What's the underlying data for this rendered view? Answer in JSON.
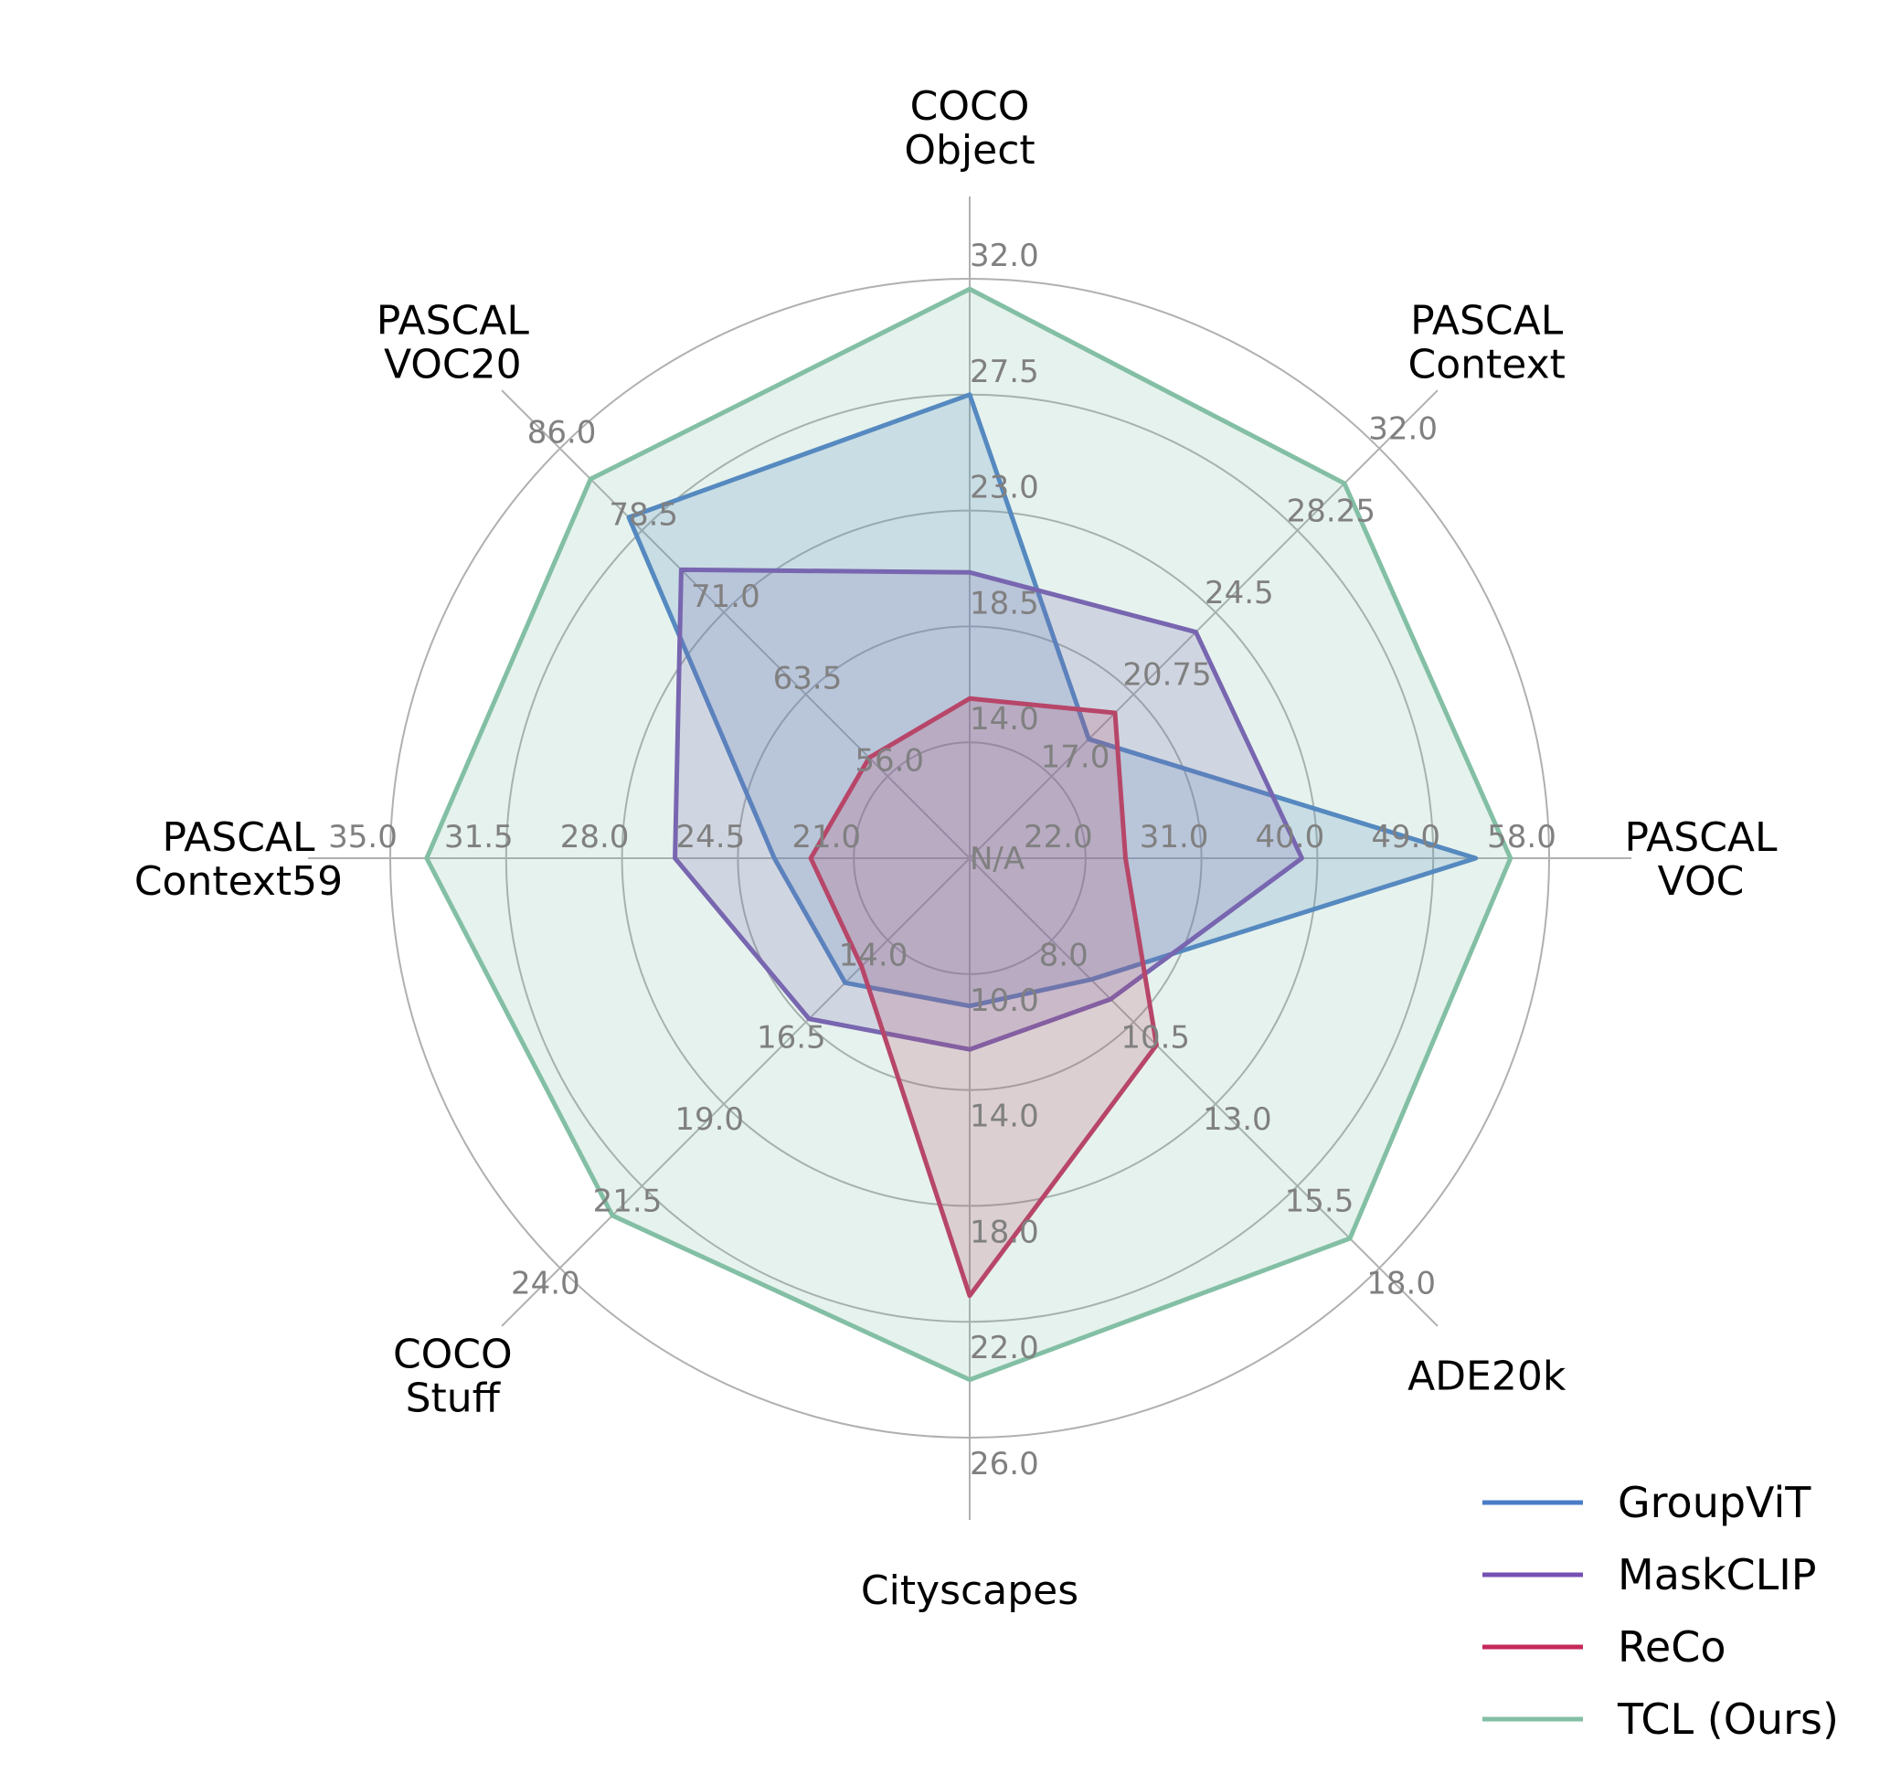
{
  "chart_data": {
    "type": "radar",
    "axes": [
      {
        "label": [
          "PASCAL",
          "VOC"
        ],
        "ticks": [
          "N/A",
          "22.0",
          "31.0",
          "40.0",
          "49.0",
          "58.0"
        ],
        "min": 13.0,
        "max": 58.0
      },
      {
        "label": [
          "PASCAL",
          "Context"
        ],
        "ticks": [
          "N/A",
          "17.0",
          "20.75",
          "24.5",
          "28.25",
          "32.0"
        ],
        "min": 13.25,
        "max": 32.0
      },
      {
        "label": [
          "COCO",
          "Object"
        ],
        "ticks": [
          "N/A",
          "14.0",
          "18.5",
          "23.0",
          "27.5",
          "32.0"
        ],
        "min": 9.5,
        "max": 32.0
      },
      {
        "label": [
          "PASCAL",
          "VOC20"
        ],
        "ticks": [
          "N/A",
          "56.0",
          "63.5",
          "71.0",
          "78.5",
          "86.0"
        ],
        "min": 48.5,
        "max": 86.0
      },
      {
        "label": [
          "PASCAL",
          "Context59"
        ],
        "ticks": [
          "N/A",
          "21.0",
          "24.5",
          "28.0",
          "31.5",
          "35.0"
        ],
        "min": 17.5,
        "max": 35.0
      },
      {
        "label": [
          "COCO",
          "Stuff"
        ],
        "ticks": [
          "N/A",
          "14.0",
          "16.5",
          "19.0",
          "21.5",
          "24.0"
        ],
        "min": 11.5,
        "max": 24.0
      },
      {
        "label": [
          "Cityscapes"
        ],
        "ticks": [
          "N/A",
          "10.0",
          "14.0",
          "18.0",
          "22.0",
          "26.0"
        ],
        "min": 6.0,
        "max": 26.0
      },
      {
        "label": [
          "ADE20k"
        ],
        "ticks": [
          "N/A",
          "8.0",
          "10.5",
          "13.0",
          "15.5",
          "18.0"
        ],
        "min": 5.5,
        "max": 18.0
      }
    ],
    "series": [
      {
        "name": "GroupViT",
        "color": "#4a7cc7",
        "values": [
          52.3,
          18.7,
          27.5,
          79.7,
          23.4,
          15.3,
          11.1,
          9.2
        ]
      },
      {
        "name": "MaskCLIP",
        "color": "#7650b3",
        "values": [
          38.8,
          23.6,
          20.6,
          74.9,
          26.4,
          16.4,
          12.6,
          9.8
        ]
      },
      {
        "name": "ReCo",
        "color": "#c5285a",
        "values": [
          25.1,
          19.9,
          15.7,
          57.7,
          22.3,
          14.8,
          21.1,
          11.2
        ]
      },
      {
        "name": "TCL (Ours)",
        "color": "#83bfa5",
        "values": [
          55.0,
          30.4,
          31.6,
          83.2,
          33.9,
          22.4,
          24.0,
          17.1
        ]
      }
    ],
    "grid": true,
    "legend_position": "bottom-right"
  }
}
